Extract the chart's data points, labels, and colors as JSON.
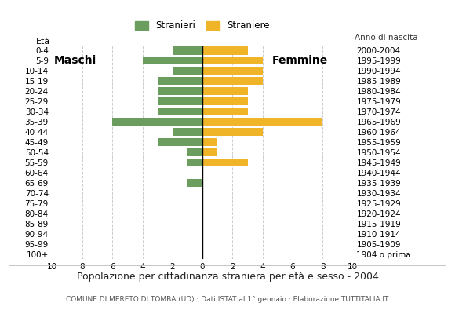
{
  "age_groups": [
    "100+",
    "95-99",
    "90-94",
    "85-89",
    "80-84",
    "75-79",
    "70-74",
    "65-69",
    "60-64",
    "55-59",
    "50-54",
    "45-49",
    "40-44",
    "35-39",
    "30-34",
    "25-29",
    "20-24",
    "15-19",
    "10-14",
    "5-9",
    "0-4"
  ],
  "birth_years": [
    "1904 o prima",
    "1905-1909",
    "1910-1914",
    "1915-1919",
    "1920-1924",
    "1925-1929",
    "1930-1934",
    "1935-1939",
    "1940-1944",
    "1945-1949",
    "1950-1954",
    "1955-1959",
    "1960-1964",
    "1965-1969",
    "1970-1974",
    "1975-1979",
    "1980-1984",
    "1985-1989",
    "1990-1994",
    "1995-1999",
    "2000-2004"
  ],
  "males": [
    0,
    0,
    0,
    0,
    0,
    0,
    0,
    1,
    0,
    1,
    1,
    3,
    2,
    6,
    3,
    3,
    3,
    3,
    2,
    4,
    2
  ],
  "females": [
    0,
    0,
    0,
    0,
    0,
    0,
    0,
    0,
    0,
    3,
    1,
    1,
    4,
    8,
    3,
    3,
    3,
    4,
    4,
    4,
    3
  ],
  "male_color": "#6b9e5e",
  "female_color": "#f0b429",
  "title": "Popolazione per cittadinanza straniera per età e sesso - 2004",
  "subtitle": "COMUNE DI MERETO DI TOMBA (UD) · Dati ISTAT al 1° gennaio · Elaborazione TUTTITALIA.IT",
  "legend_male": "Stranieri",
  "legend_female": "Straniere",
  "label_eta": "Età",
  "label_anno": "Anno di nascita",
  "label_maschi": "Maschi",
  "label_femmine": "Femmine",
  "xlim": 10,
  "background_color": "#ffffff",
  "grid_color": "#cccccc"
}
